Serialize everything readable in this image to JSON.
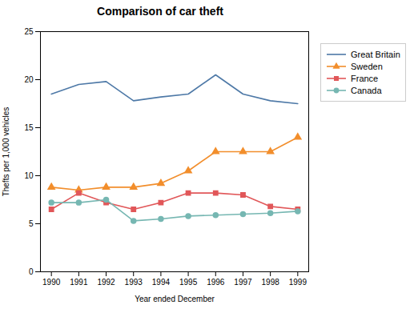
{
  "chart_data": {
    "type": "line",
    "title": "Comparison of car theft",
    "xlabel": "Year ended December",
    "ylabel": "Thefts per 1,000 vehicles",
    "x": [
      1990,
      1991,
      1992,
      1993,
      1994,
      1995,
      1996,
      1997,
      1998,
      1999
    ],
    "series": [
      {
        "name": "Great Britain",
        "values": [
          18.5,
          19.5,
          19.8,
          17.8,
          18.2,
          18.5,
          20.5,
          18.5,
          17.8,
          17.5
        ],
        "marker": "none",
        "line_style": "solid"
      },
      {
        "name": "Sweden",
        "values": [
          8.8,
          8.5,
          8.8,
          8.8,
          9.2,
          10.5,
          12.5,
          12.5,
          12.5,
          14.0
        ],
        "marker": "triangle",
        "line_style": "solid"
      },
      {
        "name": "France",
        "values": [
          6.5,
          8.2,
          7.2,
          6.5,
          7.2,
          8.2,
          8.2,
          8.0,
          6.8,
          6.5
        ],
        "marker": "square",
        "line_style": "solid"
      },
      {
        "name": "Canada",
        "values": [
          7.2,
          7.2,
          7.5,
          5.3,
          5.5,
          5.8,
          5.9,
          6.0,
          6.1,
          6.3
        ],
        "marker": "circle",
        "line_style": "solid"
      }
    ],
    "xlim": [
      1989.6,
      1999.4
    ],
    "xticks": [
      1990,
      1991,
      1992,
      1993,
      1994,
      1995,
      1996,
      1997,
      1998,
      1999
    ],
    "ylim": [
      0,
      25
    ],
    "yticks": [
      0,
      5,
      10,
      15,
      20,
      25
    ],
    "grid": false,
    "legend": "right"
  }
}
